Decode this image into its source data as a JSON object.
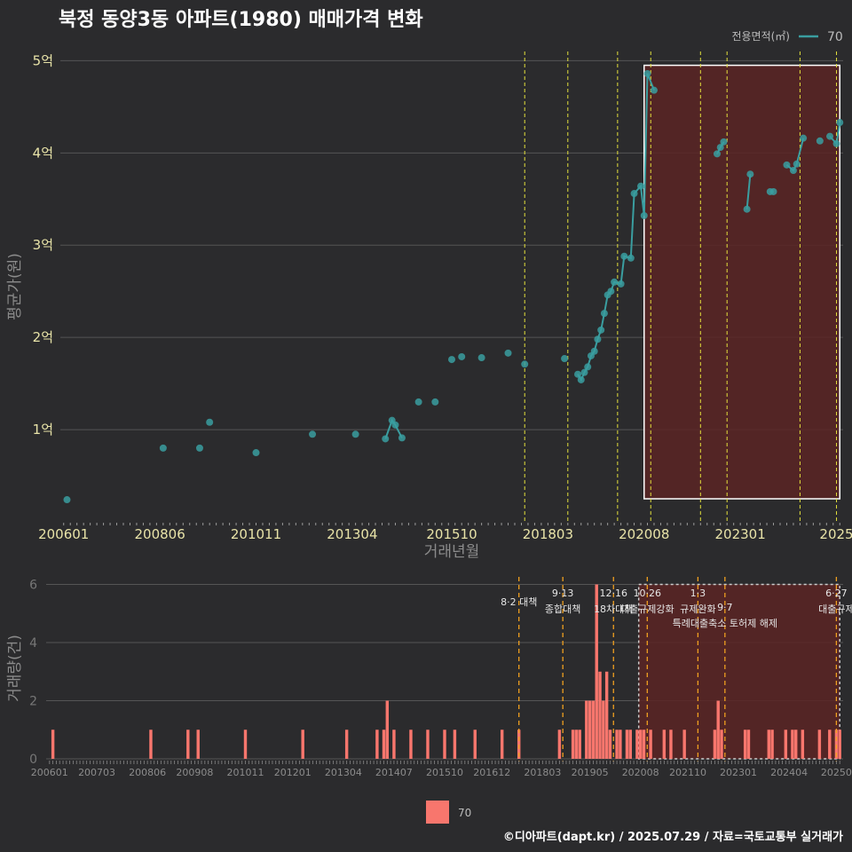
{
  "title": "북정 동양3동 아파트(1980) 매매가격 변화",
  "legend_top": {
    "title": "전용면적(㎡)",
    "item": "70",
    "color": "#3a9ea0"
  },
  "legend_bottom": {
    "item": "70",
    "color": "#f8766d"
  },
  "caption": "©디아파트(dapt.kr) / 2025.07.29 / 자료=국토교통부 실거래가",
  "colors": {
    "background": "#2b2b2d",
    "grid": "#555555",
    "vline_top": "#e3e03c",
    "vline_bottom": "#f0a020",
    "highlight_fill": "#5a2424",
    "bar": "#f8766d",
    "line": "#3a9ea0"
  },
  "chart_data": [
    {
      "type": "line",
      "title": "북정 동양3동 아파트(1980) 매매가격 변화",
      "xlabel": "거래년월",
      "ylabel": "평균가(원)",
      "x_tick_labels": [
        "200601",
        "200806",
        "201011",
        "201304",
        "201510",
        "201803",
        "202008",
        "202301",
        "2025"
      ],
      "y_tick_labels": [
        "1억",
        "2억",
        "3억",
        "4억",
        "5억"
      ],
      "ylim": [
        0,
        5.1
      ],
      "y_unit": "억원",
      "xlim": [
        "2006-01",
        "2025-07"
      ],
      "vlines": [
        "2017-08",
        "2018-09",
        "2019-12",
        "2020-10",
        "2022-01",
        "2022-09",
        "2024-07",
        "2025-06"
      ],
      "highlight_range": {
        "x": [
          "2020-08",
          "2025-07"
        ],
        "y": [
          0.25,
          4.95
        ]
      },
      "series": [
        {
          "name": "70",
          "points": [
            {
              "x": "2006-02",
              "y": 0.24
            },
            {
              "x": "2008-07",
              "y": 0.8
            },
            {
              "x": "2009-06",
              "y": 0.8
            },
            {
              "x": "2009-09",
              "y": 1.08
            },
            {
              "x": "2010-11",
              "y": 0.75
            },
            {
              "x": "2012-04",
              "y": 0.95
            },
            {
              "x": "2013-05",
              "y": 0.95
            },
            {
              "x": "2014-02",
              "y": 0.9
            },
            {
              "x": "2014-04",
              "y": 1.1
            },
            {
              "x": "2014-05",
              "y": 1.05
            },
            {
              "x": "2014-07",
              "y": 0.91
            },
            {
              "x": "2014-12",
              "y": 1.3
            },
            {
              "x": "2015-05",
              "y": 1.3
            },
            {
              "x": "2015-10",
              "y": 1.76
            },
            {
              "x": "2016-01",
              "y": 1.79
            },
            {
              "x": "2016-07",
              "y": 1.78
            },
            {
              "x": "2017-03",
              "y": 1.83
            },
            {
              "x": "2017-08",
              "y": 1.71
            },
            {
              "x": "2018-08",
              "y": 1.77
            },
            {
              "x": "2018-12",
              "y": 1.6
            },
            {
              "x": "2019-01",
              "y": 1.54
            },
            {
              "x": "2019-02",
              "y": 1.62
            },
            {
              "x": "2019-03",
              "y": 1.68
            },
            {
              "x": "2019-04",
              "y": 1.8
            },
            {
              "x": "2019-05",
              "y": 1.85
            },
            {
              "x": "2019-06",
              "y": 1.98
            },
            {
              "x": "2019-07",
              "y": 2.08
            },
            {
              "x": "2019-08",
              "y": 2.26
            },
            {
              "x": "2019-09",
              "y": 2.46
            },
            {
              "x": "2019-10",
              "y": 2.5
            },
            {
              "x": "2019-11",
              "y": 2.6
            },
            {
              "x": "2020-01",
              "y": 2.58
            },
            {
              "x": "2020-02",
              "y": 2.88
            },
            {
              "x": "2020-04",
              "y": 2.86
            },
            {
              "x": "2020-05",
              "y": 3.56
            },
            {
              "x": "2020-07",
              "y": 3.64
            },
            {
              "x": "2020-08",
              "y": 3.32
            },
            {
              "x": "2020-09",
              "y": 4.86
            },
            {
              "x": "2020-11",
              "y": 4.68
            },
            {
              "x": "2022-06",
              "y": 3.99
            },
            {
              "x": "2022-07",
              "y": 4.06
            },
            {
              "x": "2022-08",
              "y": 4.12
            },
            {
              "x": "2023-03",
              "y": 3.39
            },
            {
              "x": "2023-04",
              "y": 3.77
            },
            {
              "x": "2023-10",
              "y": 3.58
            },
            {
              "x": "2023-11",
              "y": 3.58
            },
            {
              "x": "2024-03",
              "y": 3.87
            },
            {
              "x": "2024-05",
              "y": 3.81
            },
            {
              "x": "2024-06",
              "y": 3.88
            },
            {
              "x": "2024-08",
              "y": 4.16
            },
            {
              "x": "2025-01",
              "y": 4.13
            },
            {
              "x": "2025-04",
              "y": 4.18
            },
            {
              "x": "2025-06",
              "y": 4.1
            },
            {
              "x": "2025-07",
              "y": 4.33
            }
          ]
        }
      ]
    },
    {
      "type": "bar",
      "ylabel": "거래량(건)",
      "ylim": [
        0,
        6.2
      ],
      "y_tick_labels": [
        "0",
        "2",
        "4",
        "6"
      ],
      "x_tick_labels": [
        "200601",
        "200703",
        "200806",
        "200908",
        "201011",
        "201201",
        "201304",
        "201407",
        "201510",
        "201612",
        "201803",
        "201905",
        "202008",
        "202110",
        "202301",
        "202404",
        "20250"
      ],
      "xlim": [
        "2006-01",
        "2025-07"
      ],
      "series": [
        {
          "name": "70",
          "bars": [
            {
              "x": "2006-02",
              "y": 1
            },
            {
              "x": "2008-07",
              "y": 1
            },
            {
              "x": "2009-06",
              "y": 1
            },
            {
              "x": "2009-09",
              "y": 1
            },
            {
              "x": "2010-11",
              "y": 1
            },
            {
              "x": "2012-04",
              "y": 1
            },
            {
              "x": "2013-05",
              "y": 1
            },
            {
              "x": "2014-02",
              "y": 1
            },
            {
              "x": "2014-04",
              "y": 1
            },
            {
              "x": "2014-05",
              "y": 2
            },
            {
              "x": "2014-07",
              "y": 1
            },
            {
              "x": "2014-12",
              "y": 1
            },
            {
              "x": "2015-05",
              "y": 1
            },
            {
              "x": "2015-10",
              "y": 1
            },
            {
              "x": "2016-01",
              "y": 1
            },
            {
              "x": "2016-07",
              "y": 1
            },
            {
              "x": "2017-03",
              "y": 1
            },
            {
              "x": "2017-08",
              "y": 1
            },
            {
              "x": "2018-08",
              "y": 1
            },
            {
              "x": "2018-12",
              "y": 1
            },
            {
              "x": "2019-01",
              "y": 1
            },
            {
              "x": "2019-02",
              "y": 1
            },
            {
              "x": "2019-04",
              "y": 2
            },
            {
              "x": "2019-05",
              "y": 2
            },
            {
              "x": "2019-06",
              "y": 2
            },
            {
              "x": "2019-07",
              "y": 6
            },
            {
              "x": "2019-08",
              "y": 3
            },
            {
              "x": "2019-09",
              "y": 2
            },
            {
              "x": "2019-10",
              "y": 3
            },
            {
              "x": "2019-11",
              "y": 1
            },
            {
              "x": "2020-01",
              "y": 1
            },
            {
              "x": "2020-02",
              "y": 1
            },
            {
              "x": "2020-04",
              "y": 1
            },
            {
              "x": "2020-05",
              "y": 1
            },
            {
              "x": "2020-07",
              "y": 1
            },
            {
              "x": "2020-08",
              "y": 1
            },
            {
              "x": "2020-09",
              "y": 1
            },
            {
              "x": "2020-11",
              "y": 1
            },
            {
              "x": "2021-03",
              "y": 1
            },
            {
              "x": "2021-05",
              "y": 1
            },
            {
              "x": "2021-09",
              "y": 1
            },
            {
              "x": "2022-06",
              "y": 1
            },
            {
              "x": "2022-07",
              "y": 2
            },
            {
              "x": "2022-08",
              "y": 1
            },
            {
              "x": "2023-03",
              "y": 1
            },
            {
              "x": "2023-04",
              "y": 1
            },
            {
              "x": "2023-10",
              "y": 1
            },
            {
              "x": "2023-11",
              "y": 1
            },
            {
              "x": "2024-03",
              "y": 1
            },
            {
              "x": "2024-05",
              "y": 1
            },
            {
              "x": "2024-06",
              "y": 1
            },
            {
              "x": "2024-08",
              "y": 1
            },
            {
              "x": "2025-01",
              "y": 1
            },
            {
              "x": "2025-04",
              "y": 1
            },
            {
              "x": "2025-06",
              "y": 1
            },
            {
              "x": "2025-07",
              "y": 1
            }
          ]
        }
      ],
      "annotations": [
        {
          "x": "2017-08",
          "line1": "8·2 대책",
          "line2": ""
        },
        {
          "x": "2018-09",
          "line1": "9·13",
          "line2": "종합대책"
        },
        {
          "x": "2019-12",
          "line1": "12·16",
          "line2": "18차대책"
        },
        {
          "x": "2020-10",
          "line1": "10·26",
          "line2": "대출규제강화"
        },
        {
          "x": "2022-01",
          "line1": "1·3",
          "line2": "규제완화"
        },
        {
          "x": "2022-09",
          "line1": "9·7",
          "line2": "특례대출축소 토허제 해제"
        },
        {
          "x": "2025-06",
          "line1": "6·27",
          "line2": "대출규제"
        }
      ]
    }
  ]
}
